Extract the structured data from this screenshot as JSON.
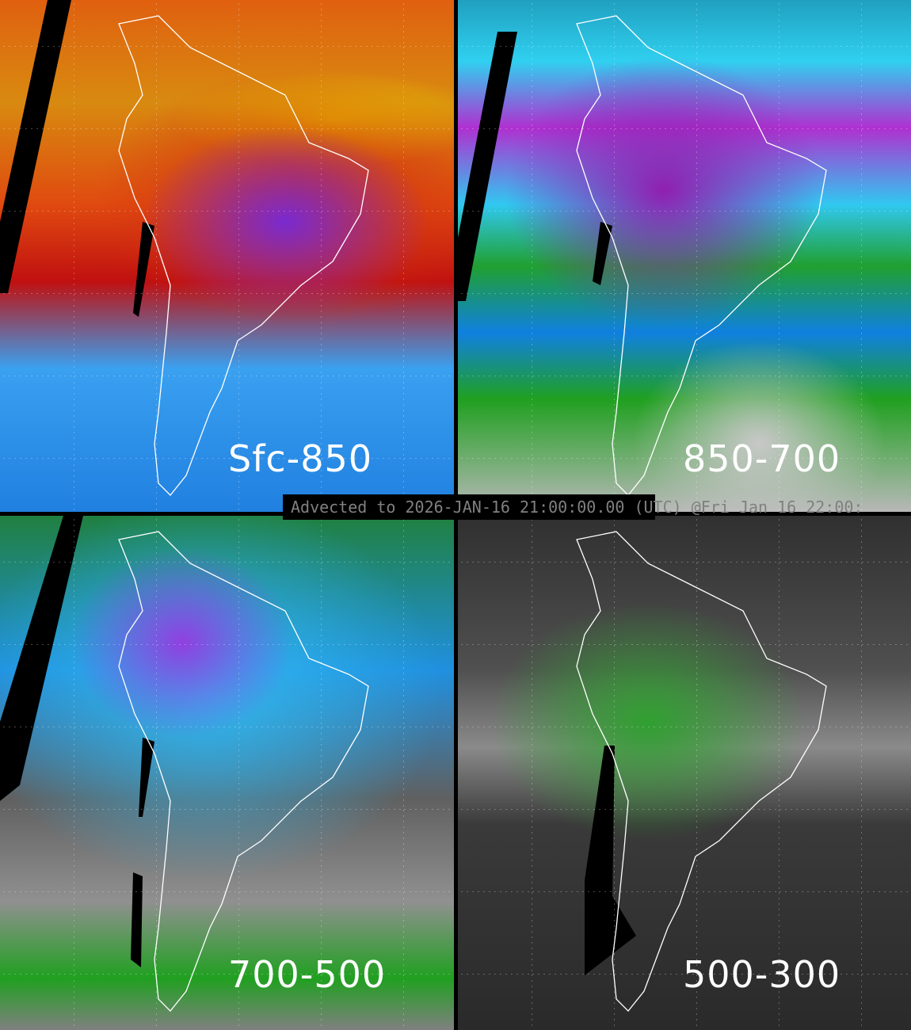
{
  "panels": [
    {
      "label": "Sfc-850",
      "palette": "orange-red-purple-blue"
    },
    {
      "label": "850-700",
      "palette": "purple-cyan-green-gray"
    },
    {
      "label": "700-500",
      "palette": "cyan-purple-green-gray"
    },
    {
      "label": "500-300",
      "palette": "gray-green"
    }
  ],
  "caption": "Advected to 2026-JAN-16 21:00:00.00 (UTC) @Fri Jan 16 22:00:",
  "colors": {
    "background": "#000000",
    "caption_text": "#808080",
    "label_text": "#ffffff",
    "coastline": "#ffffff"
  }
}
